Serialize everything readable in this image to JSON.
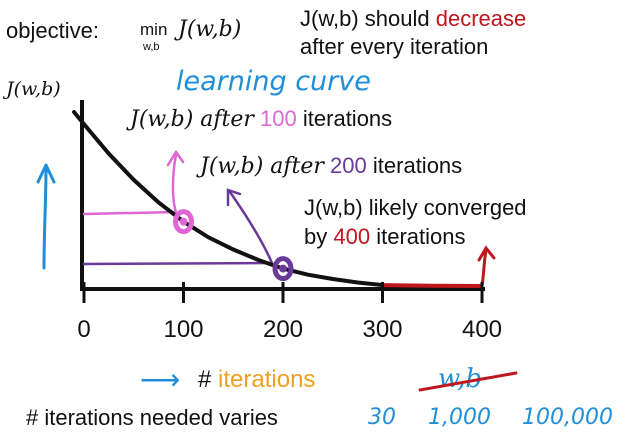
{
  "objective": {
    "label": "objective:",
    "min": "min",
    "sub": "w,b",
    "expr": "J(w,b)"
  },
  "note": {
    "line1_prefix": "J(w,b) should",
    "line1_highlight": "decrease",
    "line2": "after every iteration"
  },
  "curve_title": "learning curve",
  "annotations": [
    {
      "prefix": "J(w,b) after",
      "value": "100",
      "suffix": "iterations"
    },
    {
      "prefix": "J(w,b) after",
      "value": "200",
      "suffix": "iterations"
    },
    {
      "prefix": "J(w,b) likely converged",
      "line2_prefix": "by",
      "value": "400",
      "suffix": "iterations"
    }
  ],
  "x_caption": {
    "hash": "#",
    "word": "iterations"
  },
  "crossed": "w,b",
  "bottom": {
    "text": "# iterations needed varies",
    "examples": [
      "30",
      "1,000",
      "100,000"
    ]
  },
  "colors": {
    "blue": "#1f8fd8",
    "pink": "#e066d6",
    "purple": "#6a3a9a",
    "red": "#c0161e",
    "orange": "#f0a020",
    "black": "#111111"
  },
  "chart_data": {
    "type": "line",
    "title": "learning curve",
    "xlabel": "# iterations",
    "ylabel": "J(w,b)",
    "x_ticks": [
      0,
      100,
      200,
      300,
      400
    ],
    "xlim": [
      0,
      400
    ],
    "series": [
      {
        "x": [
          -10,
          0,
          25,
          50,
          75,
          100,
          125,
          150,
          175,
          200,
          225,
          250,
          275,
          300,
          350,
          400
        ],
        "y": [
          1.0,
          0.93,
          0.76,
          0.61,
          0.48,
          0.37,
          0.28,
          0.21,
          0.15,
          0.1,
          0.065,
          0.04,
          0.02,
          0.005,
          0.002,
          0.0
        ]
      }
    ],
    "highlights": [
      {
        "x": 100,
        "y": 0.37
      },
      {
        "x": 200,
        "y": 0.1
      }
    ],
    "converged_from": 300
  }
}
